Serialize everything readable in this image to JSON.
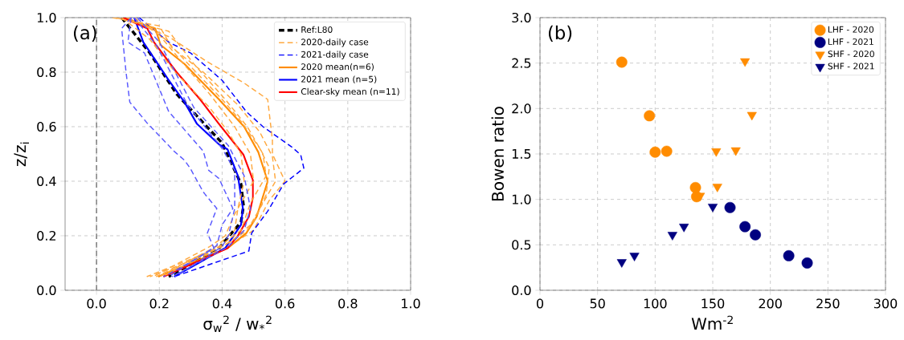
{
  "chart_data": [
    {
      "type": "line",
      "xlabel": "σ$_{w}$$^{2}$ / w$_{*}$$^{2}$",
      "ylabel": "z/z$_{i}$",
      "annotations": [
        "(a)"
      ],
      "xlim": [
        -0.1,
        1.0
      ],
      "ylim": [
        0,
        1.0
      ],
      "xticks": [
        {
          "value": 0,
          "label": "0.0"
        },
        {
          "value": 0.2,
          "label": "0.2"
        },
        {
          "value": 0.4,
          "label": "0.4"
        },
        {
          "value": 0.6,
          "label": "0.6"
        },
        {
          "value": 0.8,
          "label": "0.8"
        },
        {
          "value": 1.0,
          "label": "1.0"
        }
      ],
      "yticks": [
        {
          "value": 0,
          "label": "0.0"
        },
        {
          "value": 0.2,
          "label": "0.2"
        },
        {
          "value": 0.4,
          "label": "0.4"
        },
        {
          "value": 0.6,
          "label": "0.6"
        },
        {
          "value": 0.8,
          "label": "0.8"
        },
        {
          "value": 1.0,
          "label": "1.0"
        }
      ],
      "grid": true,
      "legend": "top right",
      "marker": "none",
      "ref_lines": [
        {
          "axis": "x",
          "value": 0,
          "color": "#808080",
          "line_style": "dashed"
        }
      ],
      "series": [
        {
          "name": "Ref:L80",
          "color": "#000000",
          "line_style": "dashed",
          "x": [
            0.08,
            0.17,
            0.255,
            0.315,
            0.4,
            0.46,
            0.468,
            0.46,
            0.39,
            0.23
          ],
          "values": [
            1.0,
            0.87,
            0.72,
            0.645,
            0.54,
            0.39,
            0.31,
            0.25,
            0.155,
            0.05
          ]
        },
        {
          "name": "2020-daily case",
          "color": "#ffa940",
          "line_style": "dashed",
          "x": [
            0.09,
            0.23,
            0.35,
            0.47,
            0.545,
            0.56,
            0.56,
            0.6,
            0.55,
            0.5,
            0.42,
            0.17
          ],
          "values": [
            1.0,
            0.93,
            0.84,
            0.76,
            0.7,
            0.55,
            0.5,
            0.4,
            0.33,
            0.22,
            0.16,
            0.05
          ]
        },
        {
          "name": "2021-daily case",
          "color": "#0000ff",
          "line_style": "dashed",
          "x": [
            0.136,
            0.23,
            0.3,
            0.4,
            0.477,
            0.53,
            0.62,
            0.65,
            0.66,
            0.596,
            0.545,
            0.494,
            0.485,
            0.247
          ],
          "values": [
            1.0,
            0.91,
            0.87,
            0.77,
            0.655,
            0.6,
            0.527,
            0.497,
            0.448,
            0.39,
            0.29,
            0.21,
            0.144,
            0.05
          ]
        },
        {
          "name": "2020 mean(n=6)",
          "color": "#ff8c00",
          "line_style": "solid",
          "x": [
            0.085,
            0.187,
            0.204,
            0.28,
            0.39,
            0.47,
            0.515,
            0.545,
            0.51,
            0.477,
            0.417,
            0.196
          ],
          "values": [
            1.0,
            0.96,
            0.9,
            0.83,
            0.7,
            0.6,
            0.507,
            0.4,
            0.27,
            0.21,
            0.154,
            0.05
          ]
        },
        {
          "name": "2021 mean (n=5)",
          "color": "#0000ff",
          "line_style": "solid",
          "x": [
            0.12,
            0.149,
            0.23,
            0.28,
            0.32,
            0.39,
            0.417,
            0.45,
            0.466,
            0.46,
            0.41,
            0.247
          ],
          "values": [
            1.0,
            0.91,
            0.77,
            0.69,
            0.61,
            0.535,
            0.517,
            0.42,
            0.3,
            0.24,
            0.155,
            0.05
          ]
        },
        {
          "name": "Clear-sky mean (n=11)",
          "color": "#ff0000",
          "line_style": "solid",
          "x": [
            0.085,
            0.162,
            0.183,
            0.255,
            0.33,
            0.39,
            0.468,
            0.498,
            0.498,
            0.485,
            0.45,
            0.417,
            0.213
          ],
          "values": [
            1.0,
            0.96,
            0.91,
            0.8,
            0.7,
            0.61,
            0.497,
            0.404,
            0.34,
            0.27,
            0.2,
            0.154,
            0.05
          ]
        },
        {
          "color": "#ffa940",
          "line_style": "dashed",
          "x": [
            0.05,
            0.2,
            0.24,
            0.34,
            0.45,
            0.52,
            0.56,
            0.57,
            0.52,
            0.48,
            0.4,
            0.16
          ],
          "values": [
            1.0,
            0.97,
            0.89,
            0.8,
            0.68,
            0.58,
            0.49,
            0.4,
            0.3,
            0.22,
            0.16,
            0.05
          ]
        },
        {
          "color": "#ffa940",
          "line_style": "dashed",
          "x": [
            0.06,
            0.23,
            0.31,
            0.41,
            0.48,
            0.53,
            0.54,
            0.49,
            0.46,
            0.39,
            0.19
          ],
          "values": [
            1.0,
            0.95,
            0.83,
            0.7,
            0.6,
            0.5,
            0.42,
            0.32,
            0.22,
            0.16,
            0.05
          ]
        },
        {
          "color": "#ffa940",
          "line_style": "dashed",
          "x": [
            0.1,
            0.19,
            0.27,
            0.36,
            0.44,
            0.49,
            0.5,
            0.44,
            0.41,
            0.36,
            0.18
          ],
          "values": [
            1.0,
            0.95,
            0.84,
            0.72,
            0.6,
            0.5,
            0.4,
            0.28,
            0.2,
            0.16,
            0.05
          ]
        },
        {
          "color": "#ffa940",
          "line_style": "dashed",
          "x": [
            0.12,
            0.22,
            0.3,
            0.4,
            0.46,
            0.52,
            0.55,
            0.54,
            0.5,
            0.43,
            0.21
          ],
          "values": [
            1.0,
            0.92,
            0.82,
            0.7,
            0.62,
            0.52,
            0.45,
            0.35,
            0.25,
            0.18,
            0.05
          ]
        },
        {
          "color": "#ffa940",
          "line_style": "dashed",
          "x": [
            0.08,
            0.17,
            0.25,
            0.36,
            0.42,
            0.46,
            0.47,
            0.45,
            0.44,
            0.38,
            0.2
          ],
          "values": [
            1.0,
            0.92,
            0.8,
            0.67,
            0.58,
            0.5,
            0.4,
            0.3,
            0.22,
            0.16,
            0.05
          ]
        },
        {
          "color": "#5a5aff",
          "line_style": "dashed",
          "x": [
            0.11,
            0.08,
            0.094,
            0.106,
            0.16,
            0.247,
            0.28,
            0.298,
            0.34,
            0.383,
            0.353,
            0.374,
            0.255,
            0.213
          ],
          "values": [
            1.0,
            0.96,
            0.8,
            0.69,
            0.615,
            0.51,
            0.477,
            0.448,
            0.36,
            0.3,
            0.21,
            0.154,
            0.075,
            0.05
          ]
        },
        {
          "color": "#5a5aff",
          "line_style": "dashed",
          "x": [
            0.11,
            0.1,
            0.153,
            0.23,
            0.34,
            0.357,
            0.39,
            0.434,
            0.4,
            0.383,
            0.23
          ],
          "values": [
            1.0,
            0.91,
            0.87,
            0.655,
            0.51,
            0.44,
            0.41,
            0.3,
            0.24,
            0.164,
            0.05
          ]
        },
        {
          "color": "#5a5aff",
          "line_style": "dashed",
          "x": [
            0.12,
            0.19,
            0.29,
            0.4,
            0.44,
            0.44,
            0.42,
            0.4,
            0.25
          ],
          "values": [
            1.0,
            0.9,
            0.68,
            0.52,
            0.44,
            0.3,
            0.2,
            0.16,
            0.05
          ]
        },
        {
          "color": "#5a5aff",
          "line_style": "dashed",
          "x": [
            0.13,
            0.2,
            0.31,
            0.42,
            0.47,
            0.49,
            0.47,
            0.42,
            0.24
          ],
          "values": [
            1.0,
            0.91,
            0.67,
            0.53,
            0.42,
            0.3,
            0.22,
            0.16,
            0.05
          ]
        }
      ]
    },
    {
      "type": "scatter",
      "xlabel": "Wm$^{-2}$",
      "ylabel": "Bowen ratio",
      "annotations": [
        "(b)"
      ],
      "xlim": [
        0,
        300
      ],
      "ylim": [
        0,
        3.0
      ],
      "xticks": [
        0,
        50,
        100,
        150,
        200,
        250,
        300
      ],
      "yticks": [
        {
          "value": 0,
          "label": "0.0"
        },
        {
          "value": 0.5,
          "label": "0.5"
        },
        {
          "value": 1.0,
          "label": "1.0"
        },
        {
          "value": 1.5,
          "label": "1.5"
        },
        {
          "value": 2.0,
          "label": "2.0"
        },
        {
          "value": 2.5,
          "label": "2.5"
        },
        {
          "value": 3.0,
          "label": "3.0"
        }
      ],
      "grid": true,
      "legend": "top right",
      "series": [
        {
          "name": "LHF - 2020",
          "color": "#ff8c00",
          "marker": "circle",
          "x": [
            71,
            95,
            100,
            110,
            135,
            136
          ],
          "values": [
            2.51,
            1.92,
            1.52,
            1.53,
            1.13,
            1.03
          ]
        },
        {
          "name": "LHF - 2021",
          "color": "#000080",
          "marker": "circle",
          "x": [
            165,
            178,
            187,
            216,
            232
          ],
          "values": [
            0.91,
            0.7,
            0.61,
            0.38,
            0.3
          ]
        },
        {
          "name": "SHF - 2020",
          "color": "#ff8c00",
          "marker": "triangle",
          "x": [
            178,
            184,
            153,
            170,
            154,
            139
          ],
          "values": [
            2.52,
            1.93,
            1.53,
            1.54,
            1.14,
            1.04
          ]
        },
        {
          "name": "SHF - 2021",
          "color": "#000080",
          "marker": "triangle",
          "x": [
            71,
            82,
            115,
            125,
            150
          ],
          "values": [
            0.31,
            0.38,
            0.61,
            0.7,
            0.92
          ]
        }
      ]
    }
  ]
}
